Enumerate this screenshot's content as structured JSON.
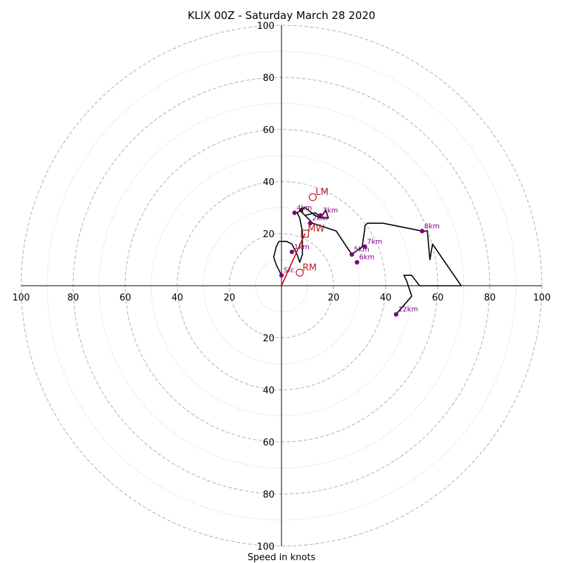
{
  "chart_data": {
    "type": "scatter",
    "title": "KLIX 00Z - Saturday March 28 2020",
    "xlabel": "Speed in knots",
    "ylabel": "",
    "xlim": [
      -100,
      100
    ],
    "ylim": [
      -100,
      100
    ],
    "grid": "polar rings",
    "ring_values_dashed": [
      20,
      40,
      60,
      80,
      100
    ],
    "ring_values_dotted": [
      10,
      30,
      50,
      70,
      90
    ],
    "ticks": {
      "left": [
        "100",
        "80",
        "60",
        "40",
        "20"
      ],
      "right": [
        "20",
        "40",
        "60",
        "80",
        "100"
      ],
      "top": [
        "20",
        "40",
        "60",
        "80",
        "100"
      ],
      "bottom": [
        "20",
        "40",
        "60",
        "80",
        "100"
      ]
    },
    "hodograph": {
      "color": "#000000",
      "points": [
        [
          0,
          4
        ],
        [
          -2,
          8
        ],
        [
          -3,
          11
        ],
        [
          -2,
          15
        ],
        [
          -1,
          17
        ],
        [
          2,
          17
        ],
        [
          4,
          16
        ],
        [
          6,
          12
        ],
        [
          7,
          9
        ],
        [
          8,
          12
        ],
        [
          8,
          21
        ],
        [
          7,
          26
        ],
        [
          6,
          28
        ],
        [
          9,
          30
        ],
        [
          13,
          27
        ],
        [
          15,
          26
        ],
        [
          17,
          29
        ],
        [
          18,
          26
        ],
        [
          16,
          26
        ],
        [
          13,
          28
        ],
        [
          9,
          27
        ],
        [
          8,
          28
        ],
        [
          8,
          30
        ],
        [
          7,
          29
        ],
        [
          12,
          24
        ],
        [
          21,
          21
        ],
        [
          25,
          15
        ],
        [
          27,
          12
        ],
        [
          31,
          15
        ],
        [
          32,
          22
        ],
        [
          32,
          23
        ],
        [
          33,
          24
        ],
        [
          39,
          24
        ],
        [
          54,
          21
        ],
        [
          56,
          21
        ],
        [
          57,
          10
        ],
        [
          58,
          16
        ],
        [
          69,
          0
        ],
        [
          55,
          0
        ],
        [
          53,
          0
        ],
        [
          50,
          4
        ],
        [
          47,
          4
        ],
        [
          48,
          2
        ],
        [
          50,
          -4
        ],
        [
          44,
          -11
        ]
      ],
      "storm_motion_line": {
        "color": "#dd0000",
        "from": [
          0,
          0
        ],
        "to": [
          9,
          20
        ]
      }
    },
    "height_markers": [
      {
        "label": "Sfc",
        "u": 0,
        "v": 4
      },
      {
        "label": "1km",
        "u": 4,
        "v": 13
      },
      {
        "label": "2km",
        "u": 11,
        "v": 24
      },
      {
        "label": "3km",
        "u": 15,
        "v": 27
      },
      {
        "label": "4km",
        "u": 5,
        "v": 28
      },
      {
        "label": "5km",
        "u": 27,
        "v": 12
      },
      {
        "label": "6km",
        "u": 29,
        "v": 9
      },
      {
        "label": "7km",
        "u": 32,
        "v": 15
      },
      {
        "label": "8km",
        "u": 54,
        "v": 21
      },
      {
        "label": "12km",
        "u": 44,
        "v": -11
      }
    ],
    "storm_markers": [
      {
        "label": "LM",
        "u": 12,
        "v": 34,
        "shape": "circle"
      },
      {
        "label": "MW",
        "u": 9,
        "v": 20,
        "shape": "square"
      },
      {
        "label": "RM",
        "u": 7,
        "v": 5,
        "shape": "circle"
      }
    ],
    "colors": {
      "hodograph": "#000000",
      "height_markers": "#800080",
      "storm_markers": "#b22222",
      "grid": "#b0b0b0"
    }
  }
}
